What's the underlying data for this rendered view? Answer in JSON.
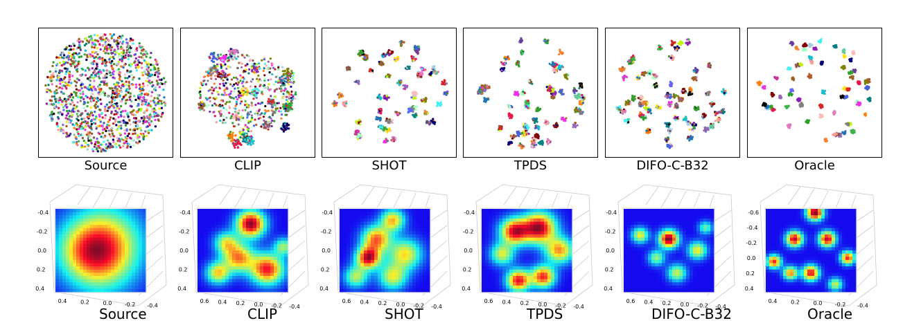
{
  "chart_data": [
    {
      "type": "scatter",
      "title": "Source",
      "row": "t-SNE",
      "clusters": 0,
      "spread": "diffuse",
      "xlim": [
        -1,
        1
      ],
      "ylim": [
        -1,
        1
      ]
    },
    {
      "type": "scatter",
      "title": "CLIP",
      "row": "t-SNE",
      "clusters": 25,
      "spread": "semi-clustered",
      "xlim": [
        -1,
        1
      ],
      "ylim": [
        -1,
        1
      ]
    },
    {
      "type": "scatter",
      "title": "SHOT",
      "row": "t-SNE",
      "clusters": 60,
      "spread": "clustered",
      "xlim": [
        -1,
        1
      ],
      "ylim": [
        -1,
        1
      ]
    },
    {
      "type": "scatter",
      "title": "TPDS",
      "row": "t-SNE",
      "clusters": 60,
      "spread": "clustered",
      "xlim": [
        -1,
        1
      ],
      "ylim": [
        -1,
        1
      ]
    },
    {
      "type": "scatter",
      "title": "DIFO-C-B32",
      "row": "t-SNE",
      "clusters": 65,
      "spread": "clustered",
      "xlim": [
        -1,
        1
      ],
      "ylim": [
        -1,
        1
      ]
    },
    {
      "type": "scatter",
      "title": "Oracle",
      "row": "t-SNE",
      "clusters": 65,
      "spread": "well-separated",
      "xlim": [
        -1,
        1
      ],
      "ylim": [
        -1,
        1
      ]
    },
    {
      "type": "heatmap",
      "title": "Source",
      "row": "density-surface",
      "y_ticks": [
        "-0.4",
        "-0.2",
        "0.0",
        "0.2",
        "0.4"
      ],
      "x_ticks": [
        "0.4",
        "0.2",
        "0.0",
        "-0.2",
        "-0.4"
      ],
      "peaks": [
        {
          "x": 0.05,
          "y": -0.15,
          "h": 1.0,
          "s": 0.32
        },
        {
          "x": 0.0,
          "y": 0.2,
          "h": 0.7,
          "s": 0.3
        },
        {
          "x": -0.2,
          "y": 0.0,
          "h": 0.5,
          "s": 0.25
        }
      ]
    },
    {
      "type": "heatmap",
      "title": "CLIP",
      "row": "density-surface",
      "y_ticks": [
        "-0.4",
        "-0.2",
        "0.0",
        "0.2",
        "0.4"
      ],
      "x_ticks": [
        "0.6",
        "0.4",
        "0.2",
        "0.0",
        "-0.2",
        "-0.4"
      ],
      "peaks": [
        {
          "x": 0.1,
          "y": -0.35,
          "h": 1.0,
          "s": 0.12
        },
        {
          "x": 0.3,
          "y": 0.25,
          "h": 0.85,
          "s": 0.14
        },
        {
          "x": -0.05,
          "y": 0.1,
          "h": 0.7,
          "s": 0.13
        },
        {
          "x": -0.3,
          "y": 0.3,
          "h": 0.6,
          "s": 0.1
        },
        {
          "x": 0.5,
          "y": -0.05,
          "h": 0.45,
          "s": 0.08
        },
        {
          "x": -0.2,
          "y": -0.1,
          "h": 0.5,
          "s": 0.1
        }
      ]
    },
    {
      "type": "heatmap",
      "title": "SHOT",
      "row": "density-surface",
      "y_ticks": [
        "-0.4",
        "-0.2",
        "0.0",
        "0.2",
        "0.4"
      ],
      "x_ticks": [
        "0.6",
        "0.4",
        "0.2",
        "0.0",
        "-0.2",
        "-0.4"
      ],
      "peaks": [
        {
          "x": 0.1,
          "y": -0.4,
          "h": 0.65,
          "s": 0.1
        },
        {
          "x": -0.1,
          "y": -0.15,
          "h": 0.75,
          "s": 0.12
        },
        {
          "x": -0.2,
          "y": 0.1,
          "h": 0.95,
          "s": 0.1
        },
        {
          "x": 0.25,
          "y": 0.05,
          "h": 0.6,
          "s": 0.14
        },
        {
          "x": 0.1,
          "y": 0.35,
          "h": 0.55,
          "s": 0.12
        },
        {
          "x": -0.35,
          "y": 0.35,
          "h": 0.5,
          "s": 0.1
        }
      ]
    },
    {
      "type": "heatmap",
      "title": "TPDS",
      "row": "density-surface",
      "y_ticks": [
        "-0.4",
        "-0.2",
        "0.0",
        "0.2",
        "0.4"
      ],
      "x_ticks": [
        "0.6",
        "0.4",
        "0.2",
        "0.0",
        "-0.2",
        "-0.4"
      ],
      "peaks": [
        {
          "x": 0.15,
          "y": -0.3,
          "h": 1.0,
          "s": 0.14
        },
        {
          "x": -0.15,
          "y": -0.25,
          "h": 0.9,
          "s": 0.12
        },
        {
          "x": 0.4,
          "y": 0.0,
          "h": 0.7,
          "s": 0.12
        },
        {
          "x": 0.2,
          "y": 0.35,
          "h": 0.85,
          "s": 0.1
        },
        {
          "x": -0.1,
          "y": 0.4,
          "h": 0.9,
          "s": 0.1
        },
        {
          "x": -0.3,
          "y": 0.05,
          "h": 0.55,
          "s": 0.1
        }
      ]
    },
    {
      "type": "heatmap",
      "title": "DIFO-C-B32",
      "row": "density-surface",
      "y_ticks": [
        "-0.4",
        "-0.2",
        "0.0",
        "0.2",
        "0.4"
      ],
      "x_ticks": [
        "0.6",
        "0.4",
        "0.2",
        "0.0",
        "-0.2",
        "-0.4"
      ],
      "peaks": [
        {
          "x": 0.0,
          "y": -0.15,
          "h": 0.9,
          "s": 0.08
        },
        {
          "x": 0.35,
          "y": 0.0,
          "h": 0.5,
          "s": 0.08
        },
        {
          "x": -0.35,
          "y": -0.2,
          "h": 0.5,
          "s": 0.07
        },
        {
          "x": 0.1,
          "y": 0.3,
          "h": 0.45,
          "s": 0.08
        },
        {
          "x": -0.15,
          "y": 0.1,
          "h": 0.4,
          "s": 0.07
        },
        {
          "x": 0.45,
          "y": -0.3,
          "h": 0.35,
          "s": 0.06
        }
      ]
    },
    {
      "type": "heatmap",
      "title": "Oracle",
      "row": "density-surface",
      "y_ticks": [
        "-0.6",
        "-0.4",
        "-0.2",
        "0.0",
        "0.2",
        "0.4"
      ],
      "x_ticks": [
        "0.4",
        "0.2",
        "0.0",
        "-0.2",
        "-0.4"
      ],
      "peaks": [
        {
          "x": 0.05,
          "y": -0.5,
          "h": 1.0,
          "s": 0.07
        },
        {
          "x": 0.2,
          "y": -0.15,
          "h": 0.9,
          "s": 0.07
        },
        {
          "x": -0.2,
          "y": -0.15,
          "h": 0.9,
          "s": 0.07
        },
        {
          "x": 0.45,
          "y": 0.1,
          "h": 0.8,
          "s": 0.06
        },
        {
          "x": -0.45,
          "y": 0.15,
          "h": 0.8,
          "s": 0.06
        },
        {
          "x": 0.0,
          "y": 0.3,
          "h": 0.85,
          "s": 0.07
        },
        {
          "x": -0.25,
          "y": 0.3,
          "h": 0.7,
          "s": 0.06
        },
        {
          "x": 0.3,
          "y": 0.45,
          "h": 0.5,
          "s": 0.06
        }
      ]
    }
  ]
}
